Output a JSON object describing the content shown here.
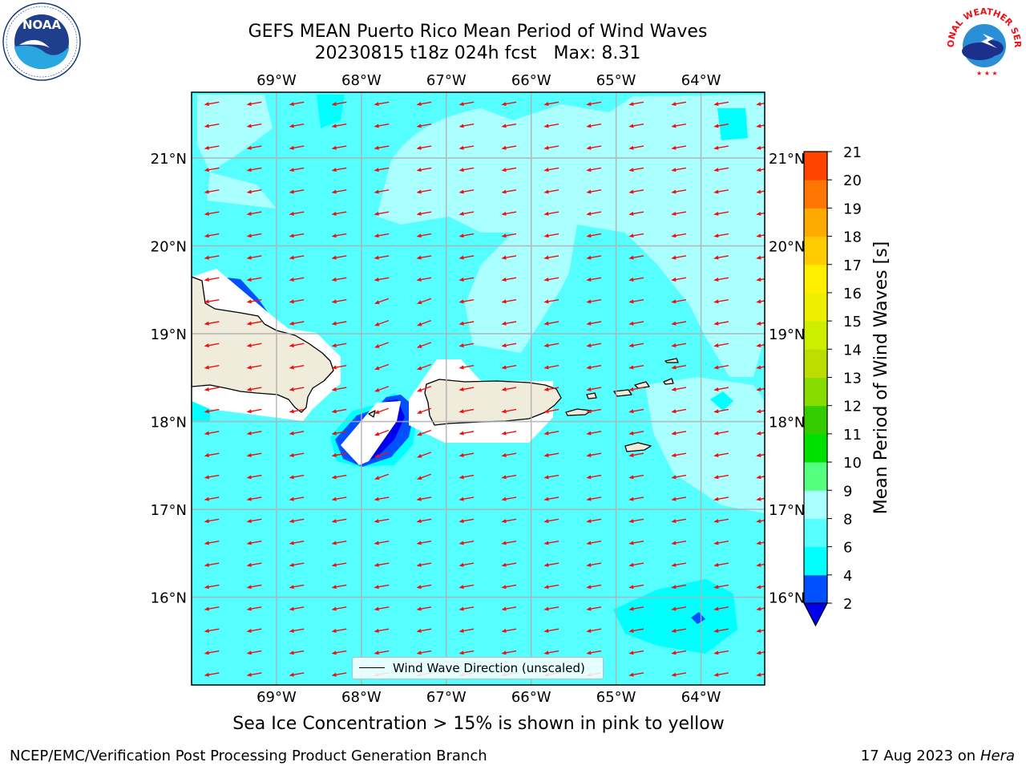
{
  "title": {
    "line1": "GEFS MEAN Puerto Rico Mean Period of Wind Waves",
    "line2": "20230815 t18z 024h fcst",
    "max_label": "Max: 8.31"
  },
  "map": {
    "lon_ticks": [
      "69°W",
      "68°W",
      "67°W",
      "66°W",
      "65°W",
      "64°W"
    ],
    "lon_values": [
      -69,
      -68,
      -67,
      -66,
      -65,
      -64
    ],
    "lat_ticks": [
      "21°N",
      "20°N",
      "19°N",
      "18°N",
      "17°N",
      "16°N"
    ],
    "lat_values": [
      21,
      20,
      19,
      18,
      17,
      16
    ],
    "extent": {
      "lon_min": -70,
      "lon_max": -63.25,
      "lat_min": 15.0,
      "lat_max": 21.75
    },
    "legend": "Wind Wave Direction (unscaled)",
    "arrow_color": "#ee1111",
    "land_color": "#efecdc"
  },
  "colorbar": {
    "label": "Mean Period of Wind Waves [s]",
    "ticks": [
      "2",
      "4",
      "6",
      "8",
      "9",
      "10",
      "11",
      "12",
      "13",
      "14",
      "15",
      "16",
      "17",
      "18",
      "19",
      "20",
      "21"
    ],
    "colors": [
      "#0050ff",
      "#00ffff",
      "#55ffff",
      "#aaffff",
      "#55ff80",
      "#00e000",
      "#33cc00",
      "#88dd00",
      "#bbdd00",
      "#ccee00",
      "#eeee00",
      "#ffee00",
      "#ffcc00",
      "#ffaa00",
      "#ff7700",
      "#ff4400",
      "#ff1100"
    ],
    "under_color": "#0000ee"
  },
  "caption": "Sea Ice Concentration > 15% is shown in pink to yellow",
  "footer": {
    "left": "NCEP/EMC/Verification Post Processing Product Generation Branch",
    "right_date": "17 Aug 2023 on",
    "right_system": "Hera"
  },
  "logos": {
    "noaa": "NOAA",
    "nws": "NATIONAL WEATHER SERVICE"
  }
}
